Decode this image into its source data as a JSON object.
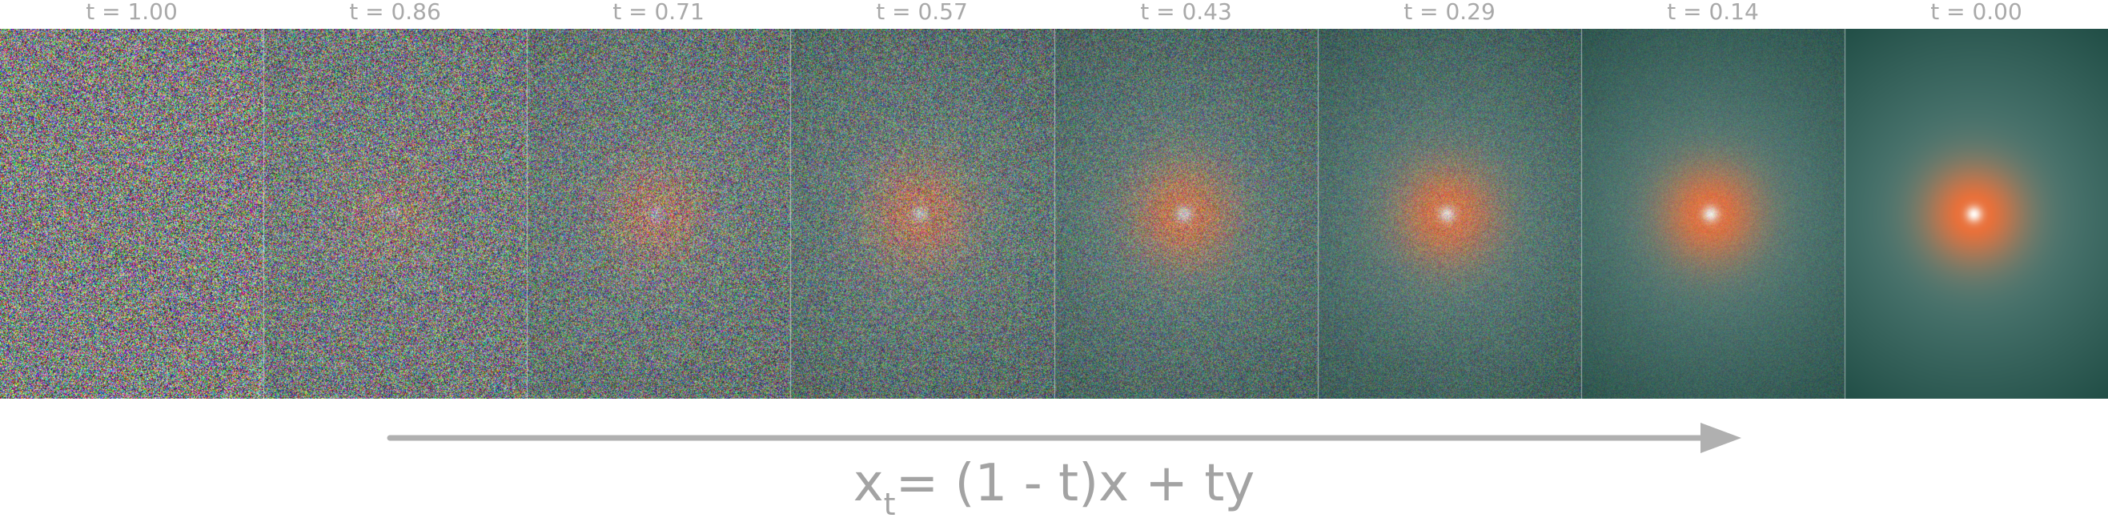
{
  "frames": [
    {
      "label": "t = 1.00",
      "t": 1.0
    },
    {
      "label": "t = 0.86",
      "t": 0.86
    },
    {
      "label": "t = 0.71",
      "t": 0.71
    },
    {
      "label": "t = 0.57",
      "t": 0.57
    },
    {
      "label": "t = 0.43",
      "t": 0.43
    },
    {
      "label": "t = 0.29",
      "t": 0.29
    },
    {
      "label": "t = 0.14",
      "t": 0.14
    },
    {
      "label": "t = 0.00",
      "t": 0.0
    }
  ],
  "formula": {
    "lhs_var": "x",
    "lhs_sub": "t",
    "rhs": "= (1 - t)x + ty"
  },
  "colors": {
    "label_text": "#a9a9a9",
    "arrow": "#b0b0b0",
    "formula_text": "#a3a3a3",
    "background_dark": "#1d4a42",
    "background_light": "#5e8d88",
    "blob_outer": "#e06a36",
    "blob_inner": "#ffffff"
  }
}
